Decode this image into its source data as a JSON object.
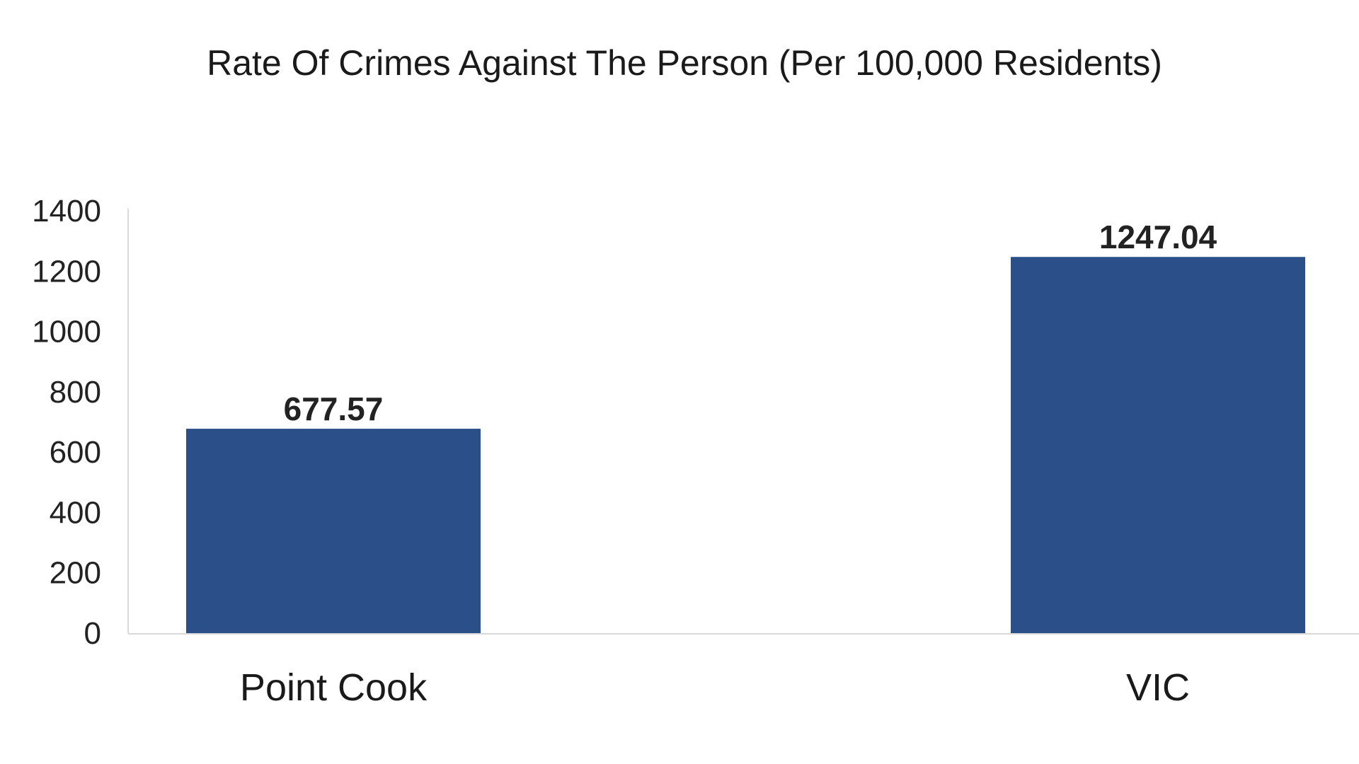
{
  "chart_data": {
    "type": "bar",
    "title": "Rate Of Crimes Against The Person (Per 100,000 Residents)",
    "categories": [
      "Point Cook",
      "VIC"
    ],
    "values": [
      677.57,
      1247.04
    ],
    "data_labels": [
      "677.57",
      "1247.04"
    ],
    "xlabel": "",
    "ylabel": "",
    "ylim": [
      0,
      1400
    ],
    "yticks": [
      "0",
      "200",
      "400",
      "600",
      "800",
      "1000",
      "1200",
      "1400"
    ],
    "grid": false,
    "legend": "none",
    "bar_color": "#2b5089"
  }
}
